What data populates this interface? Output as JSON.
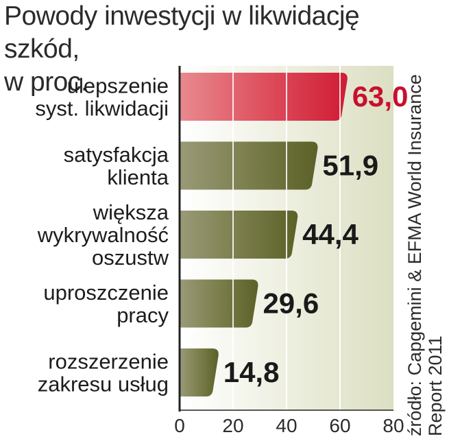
{
  "chart_data": {
    "type": "bar",
    "orientation": "horizontal",
    "title": "Powody inwestycji w likwidację szkód,",
    "subtitle": "w proc.",
    "categories": [
      [
        "ulepszenie",
        "syst. likwidacji"
      ],
      [
        "satysfakcja",
        "klienta"
      ],
      [
        "większa",
        "wykrywalność",
        "oszustw"
      ],
      [
        "uproszczenie",
        "pracy"
      ],
      [
        "rozszerzenie",
        "zakresu usług"
      ]
    ],
    "values": [
      63.0,
      51.9,
      44.4,
      29.6,
      14.8
    ],
    "value_labels": [
      "63,0",
      "51,9",
      "44,4",
      "29,6",
      "14,8"
    ],
    "highlight_index": 0,
    "xlim": [
      0,
      80
    ],
    "x_ticks": [
      0,
      20,
      40,
      60,
      80
    ],
    "grid": true,
    "source": [
      "źródło: Capgemini & EFMA World Insurance",
      "Report 2011"
    ],
    "colors": {
      "highlight": "#d41e36",
      "bar": "#6b6f3a",
      "highlight_label": "#c8102e",
      "label": "#1a1a1a",
      "grid_bg": "#e9ead9",
      "axis": "#222222"
    }
  }
}
